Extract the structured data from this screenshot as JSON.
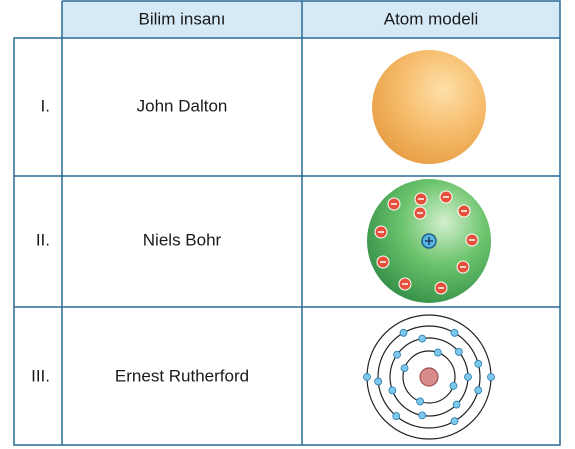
{
  "table": {
    "header": [
      "Bilim insanı",
      "Atom modeli"
    ],
    "rows": [
      {
        "numeral": "I.",
        "name": "John Dalton"
      },
      {
        "numeral": "II.",
        "name": "Niels Bohr"
      },
      {
        "numeral": "III.",
        "name": "Ernest Rutherford"
      }
    ]
  }
}
